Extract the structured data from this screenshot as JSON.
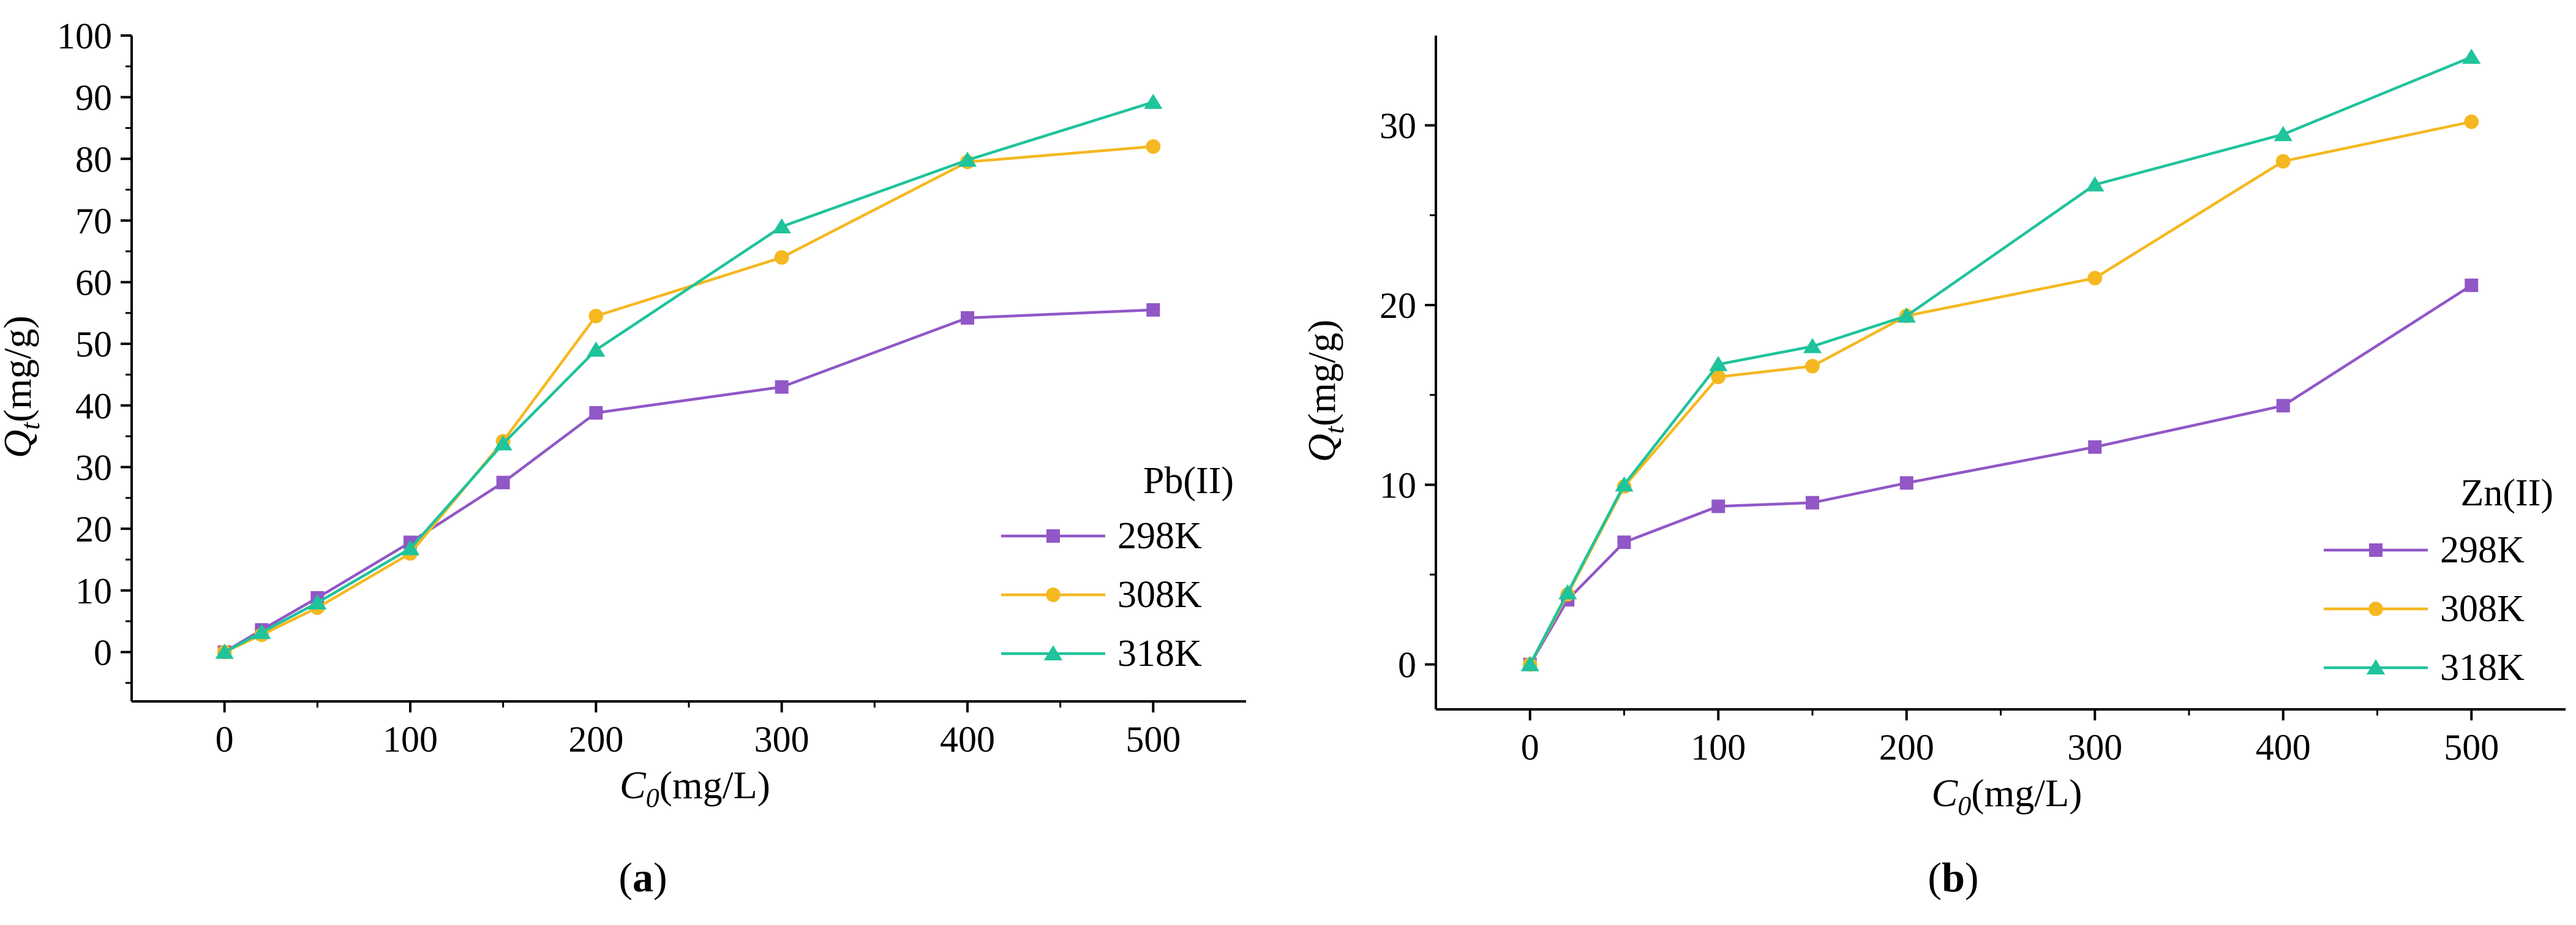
{
  "chart_data": [
    {
      "panel": "a",
      "type": "line",
      "panel_label": "a",
      "xlabel": {
        "main": "C",
        "sub": "0",
        "unit": "(mg/L)"
      },
      "ylabel": {
        "main": "Q",
        "sub": "t",
        "unit": "(mg/g)"
      },
      "xlim": [
        -50,
        550
      ],
      "ylim": [
        -8,
        100
      ],
      "xticks": [
        0,
        100,
        200,
        300,
        400,
        500
      ],
      "xminor": [
        50,
        150,
        250,
        350,
        450
      ],
      "yticks": [
        0,
        10,
        20,
        30,
        40,
        50,
        60,
        70,
        80,
        90,
        100
      ],
      "yminor": [
        -5,
        5,
        15,
        25,
        35,
        45,
        55,
        65,
        75,
        85,
        95
      ],
      "legend": {
        "title": "Pb(II)",
        "position": "bottom-right"
      },
      "x": [
        0,
        20,
        50,
        100,
        150,
        200,
        300,
        400,
        500
      ],
      "series": [
        {
          "name": "298K",
          "color": "#9157C7",
          "marker": "square",
          "values": [
            0,
            3.6,
            8.8,
            17.8,
            27.5,
            38.8,
            43.0,
            54.2,
            55.5
          ]
        },
        {
          "name": "308K",
          "color": "#F5B820",
          "marker": "circle",
          "values": [
            0,
            2.8,
            7.2,
            16.0,
            34.2,
            54.5,
            64.0,
            79.5,
            82.0
          ]
        },
        {
          "name": "318K",
          "color": "#1FC39C",
          "marker": "triangle",
          "values": [
            0,
            3.2,
            8.0,
            16.8,
            33.8,
            49.0,
            69.0,
            79.8,
            89.2
          ]
        }
      ]
    },
    {
      "panel": "b",
      "type": "line",
      "panel_label": "b",
      "xlabel": {
        "main": "C",
        "sub": "0",
        "unit": "(mg/L)"
      },
      "ylabel": {
        "main": "Q",
        "sub": "t",
        "unit": "(mg/g)"
      },
      "xlim": [
        -50,
        550
      ],
      "ylim": [
        -2.5,
        35
      ],
      "xticks": [
        0,
        100,
        200,
        300,
        400,
        500
      ],
      "xminor": [
        50,
        150,
        250,
        350,
        450
      ],
      "yticks": [
        0,
        10,
        20,
        30
      ],
      "yminor": [
        5,
        15,
        25
      ],
      "legend": {
        "title": "Zn(II)",
        "position": "bottom-right"
      },
      "x": [
        0,
        20,
        50,
        100,
        150,
        200,
        300,
        400,
        500
      ],
      "series": [
        {
          "name": "298K",
          "color": "#9157C7",
          "marker": "square",
          "values": [
            0,
            3.6,
            6.8,
            8.8,
            9.0,
            10.1,
            12.1,
            14.4,
            21.1
          ]
        },
        {
          "name": "308K",
          "color": "#F5B820",
          "marker": "circle",
          "values": [
            0,
            3.9,
            9.9,
            16.0,
            16.6,
            19.4,
            21.5,
            28.0,
            30.2
          ]
        },
        {
          "name": "318K",
          "color": "#1FC39C",
          "marker": "triangle",
          "values": [
            0,
            4.0,
            10.0,
            16.7,
            17.7,
            19.4,
            26.7,
            29.5,
            33.8
          ]
        }
      ]
    }
  ]
}
